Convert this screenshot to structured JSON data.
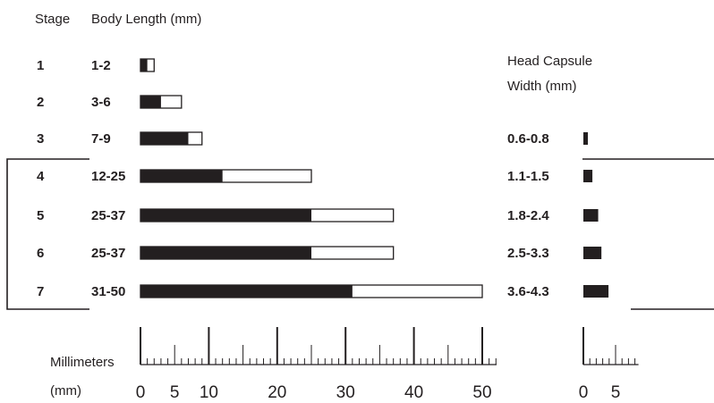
{
  "chart_data": {
    "type": "bar",
    "headers": {
      "stage": "Stage",
      "body_length": "Body Length (mm)",
      "head_capsule_line1": "Head Capsule",
      "head_capsule_line2": "Width (mm)"
    },
    "rows": [
      {
        "stage": "1",
        "length_label": "1-2",
        "length_min": 1,
        "length_max": 2,
        "head_label": "",
        "head_width": 0
      },
      {
        "stage": "2",
        "length_label": "3-6",
        "length_min": 3,
        "length_max": 6,
        "head_label": "",
        "head_width": 0
      },
      {
        "stage": "3",
        "length_label": "7-9",
        "length_min": 7,
        "length_max": 9,
        "head_label": "0.6-0.8",
        "head_width": 0.7
      },
      {
        "stage": "4",
        "length_label": "12-25",
        "length_min": 12,
        "length_max": 25,
        "head_label": "1.1-1.5",
        "head_width": 1.4
      },
      {
        "stage": "5",
        "length_label": "25-37",
        "length_min": 25,
        "length_max": 37,
        "head_label": "1.8-2.4",
        "head_width": 2.3
      },
      {
        "stage": "6",
        "length_label": "25-37",
        "length_min": 25,
        "length_max": 37,
        "head_label": "2.5-3.3",
        "head_width": 2.8
      },
      {
        "stage": "7",
        "length_label": "31-50",
        "length_min": 31,
        "length_max": 50,
        "head_label": "3.6-4.3",
        "head_width": 3.9
      }
    ],
    "bracket_stages": [
      "4",
      "7"
    ],
    "length_axis": {
      "label_line1": "Millimeters",
      "label_line2": "(mm)",
      "range": [
        0,
        50
      ],
      "major_ticks": [
        0,
        10,
        20,
        30,
        40,
        50
      ],
      "tick_labels": [
        0,
        5,
        10,
        20,
        30,
        40,
        50
      ],
      "minor_step": 1,
      "mid_step": 5
    },
    "head_axis": {
      "range": [
        0,
        8
      ],
      "major_ticks": [
        0
      ],
      "tick_labels": [
        0,
        5
      ],
      "minor_step": 1,
      "mid_step": 5
    },
    "colors": {
      "fill": "#231f20",
      "background": "#ffffff"
    }
  }
}
